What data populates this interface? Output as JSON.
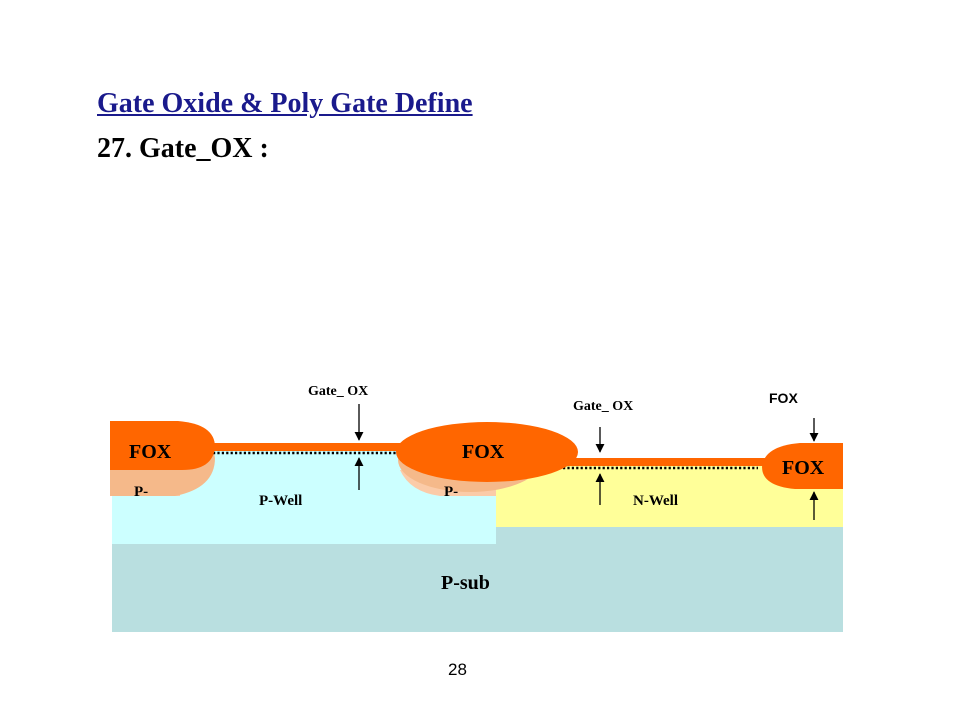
{
  "slide": {
    "title": "Gate Oxide & Poly Gate Define",
    "step": "27. Gate_OX :",
    "page_number": "28"
  },
  "diagram": {
    "labels": {
      "fox_left": "FOX",
      "fox_middle": "FOX",
      "fox_right": "FOX",
      "fox_callout": "FOX",
      "gate_ox_left": "Gate_ OX",
      "gate_ox_right": "Gate_ OX",
      "p_minus_left": "P-",
      "p_minus_middle": "P-",
      "p_well": "P-Well",
      "n_well": "N-Well",
      "p_sub": "P-sub"
    },
    "colors": {
      "fox": "#ff6600",
      "fox_shadow": "#f5b98a",
      "p_minus": "#fbcba8",
      "p_well": "#ccffff",
      "n_well": "#ffff99",
      "p_sub": "#b9dfe0",
      "oxide_dots": "#000000"
    }
  }
}
